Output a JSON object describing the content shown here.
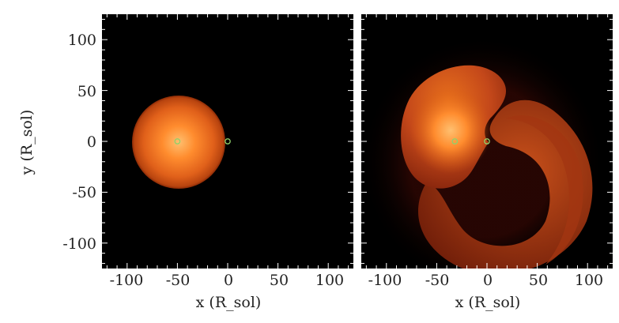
{
  "figure": {
    "background_color": "#000000",
    "colormap": [
      "#000000",
      "#3a0a02",
      "#8a2a06",
      "#d65a12",
      "#ff8c2e",
      "#ffc070"
    ],
    "marker_color": "#8fd16a",
    "panels": [
      {
        "id": "left",
        "xlabel": "x (R_sol)",
        "ylabel": "y (R_sol)",
        "xlim": [
          -125,
          125
        ],
        "ylim": [
          -125,
          125
        ],
        "xticks": [
          "-100",
          "-50",
          "0",
          "50",
          "100"
        ],
        "yticks": [
          "100",
          "50",
          "0",
          "-50",
          "-100"
        ],
        "markers": [
          {
            "name": "donor-star-core",
            "x": -50,
            "y": 0
          },
          {
            "name": "companion",
            "x": 0,
            "y": 0
          }
        ]
      },
      {
        "id": "right",
        "xlabel": "x (R_sol)",
        "ylabel": "",
        "xlim": [
          -125,
          125
        ],
        "ylim": [
          -125,
          125
        ],
        "xticks": [
          "-100",
          "-50",
          "0",
          "50",
          "100"
        ],
        "yticks": [],
        "markers": [
          {
            "name": "donor-star-core",
            "x": -32,
            "y": 0
          },
          {
            "name": "companion",
            "x": 0,
            "y": 0
          }
        ]
      }
    ]
  }
}
